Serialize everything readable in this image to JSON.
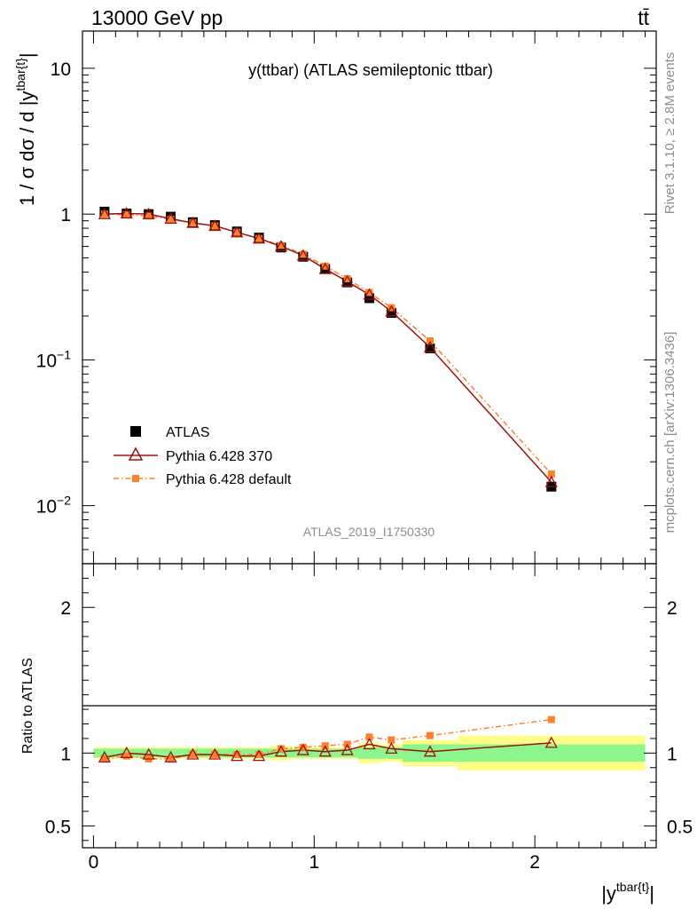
{
  "header": {
    "energy": "13000 GeV pp",
    "process": "tt̄"
  },
  "side": {
    "rivet": "Rivet 3.1.10, ≥ 2.8M events",
    "mcplots": "mcplots.cern.ch [arXiv:1306.3436]"
  },
  "colors": {
    "atlas": "#000000",
    "pythia370": "#a01010",
    "pythiadefault": "#ff7f2a",
    "band1": "#8cf58c",
    "band2": "#ffff88"
  },
  "chart_data": [
    {
      "type": "scatter",
      "title": "y(ttbar) (ATLAS semileptonic ttbar)",
      "watermark": "ATLAS_2019_I1750330",
      "ylabel": "1 / σ dσ / d |y^{tbar{t}}|",
      "yscale": "log",
      "ylim": [
        0.004,
        18
      ],
      "xlim": [
        -0.05,
        2.55
      ],
      "yticks": [
        {
          "value": 10,
          "label": "10"
        },
        {
          "value": 1,
          "label": "1"
        },
        {
          "value": 0.1,
          "base": "10",
          "exp": "−1"
        },
        {
          "value": 0.01,
          "base": "10",
          "exp": "−2"
        }
      ],
      "legend": [
        {
          "label": "ATLAS",
          "marker": "square-filled"
        },
        {
          "label": "Pythia 6.428 370",
          "marker": "triangle-open"
        },
        {
          "label": "Pythia 6.428 default",
          "marker": "square-small-dashdot"
        }
      ],
      "x": [
        0.05,
        0.15,
        0.25,
        0.35,
        0.45,
        0.55,
        0.65,
        0.75,
        0.85,
        0.95,
        1.05,
        1.15,
        1.25,
        1.35,
        1.525,
        2.075
      ],
      "series": [
        {
          "name": "ATLAS",
          "values": [
            1.04,
            1.01,
            1.0,
            0.96,
            0.88,
            0.84,
            0.76,
            0.69,
            0.59,
            0.51,
            0.42,
            0.34,
            0.265,
            0.21,
            0.12,
            0.0135
          ]
        },
        {
          "name": "Pythia 6.428 370",
          "values": [
            1.0,
            1.01,
            1.0,
            0.93,
            0.87,
            0.83,
            0.75,
            0.68,
            0.6,
            0.52,
            0.42,
            0.345,
            0.28,
            0.215,
            0.122,
            0.0145
          ]
        },
        {
          "name": "Pythia 6.428 default",
          "values": [
            1.0,
            0.99,
            0.97,
            0.92,
            0.87,
            0.83,
            0.75,
            0.68,
            0.61,
            0.53,
            0.44,
            0.36,
            0.29,
            0.228,
            0.135,
            0.0165
          ]
        }
      ]
    },
    {
      "type": "scatter",
      "ylabel": "Ratio to ATLAS",
      "xlabel": "|y^{tbar{t}}|",
      "ylim": [
        0.35,
        2.3
      ],
      "xlim": [
        -0.05,
        2.55
      ],
      "yticks": [
        {
          "value": 2,
          "label": "2"
        },
        {
          "value": 1,
          "label": "1"
        },
        {
          "value": 0.5,
          "label": "0.5"
        }
      ],
      "xticks": [
        {
          "value": 0,
          "label": "0"
        },
        {
          "value": 1,
          "label": "1"
        },
        {
          "value": 2,
          "label": "2"
        }
      ],
      "bins": [
        {
          "lo": 0.0,
          "hi": 0.1,
          "stat": 0.03,
          "tot": 0.04
        },
        {
          "lo": 0.1,
          "hi": 0.2,
          "stat": 0.03,
          "tot": 0.04
        },
        {
          "lo": 0.2,
          "hi": 0.3,
          "stat": 0.03,
          "tot": 0.04
        },
        {
          "lo": 0.3,
          "hi": 0.4,
          "stat": 0.03,
          "tot": 0.04
        },
        {
          "lo": 0.4,
          "hi": 0.5,
          "stat": 0.03,
          "tot": 0.04
        },
        {
          "lo": 0.5,
          "hi": 0.6,
          "stat": 0.03,
          "tot": 0.04
        },
        {
          "lo": 0.6,
          "hi": 0.7,
          "stat": 0.03,
          "tot": 0.04
        },
        {
          "lo": 0.7,
          "hi": 0.8,
          "stat": 0.03,
          "tot": 0.04
        },
        {
          "lo": 0.8,
          "hi": 0.9,
          "stat": 0.03,
          "tot": 0.05
        },
        {
          "lo": 0.9,
          "hi": 1.0,
          "stat": 0.03,
          "tot": 0.04
        },
        {
          "lo": 1.0,
          "hi": 1.1,
          "stat": 0.03,
          "tot": 0.04
        },
        {
          "lo": 1.1,
          "hi": 1.2,
          "stat": 0.03,
          "tot": 0.04
        },
        {
          "lo": 1.2,
          "hi": 1.3,
          "stat": 0.04,
          "tot": 0.07
        },
        {
          "lo": 1.3,
          "hi": 1.4,
          "stat": 0.04,
          "tot": 0.06
        },
        {
          "lo": 1.4,
          "hi": 1.65,
          "stat": 0.06,
          "tot": 0.09
        },
        {
          "lo": 1.65,
          "hi": 2.5,
          "stat": 0.06,
          "tot": 0.12
        }
      ],
      "series": [
        {
          "name": "Pythia 6.428 370",
          "values": [
            0.97,
            1.0,
            0.99,
            0.97,
            0.99,
            0.99,
            0.98,
            0.98,
            1.01,
            1.02,
            1.01,
            1.02,
            1.06,
            1.03,
            1.01,
            1.07
          ]
        },
        {
          "name": "Pythia 6.428 default",
          "values": [
            0.96,
            0.98,
            0.96,
            0.96,
            0.99,
            0.99,
            0.99,
            0.99,
            1.03,
            1.04,
            1.05,
            1.06,
            1.11,
            1.09,
            1.12,
            1.23
          ]
        }
      ]
    }
  ]
}
